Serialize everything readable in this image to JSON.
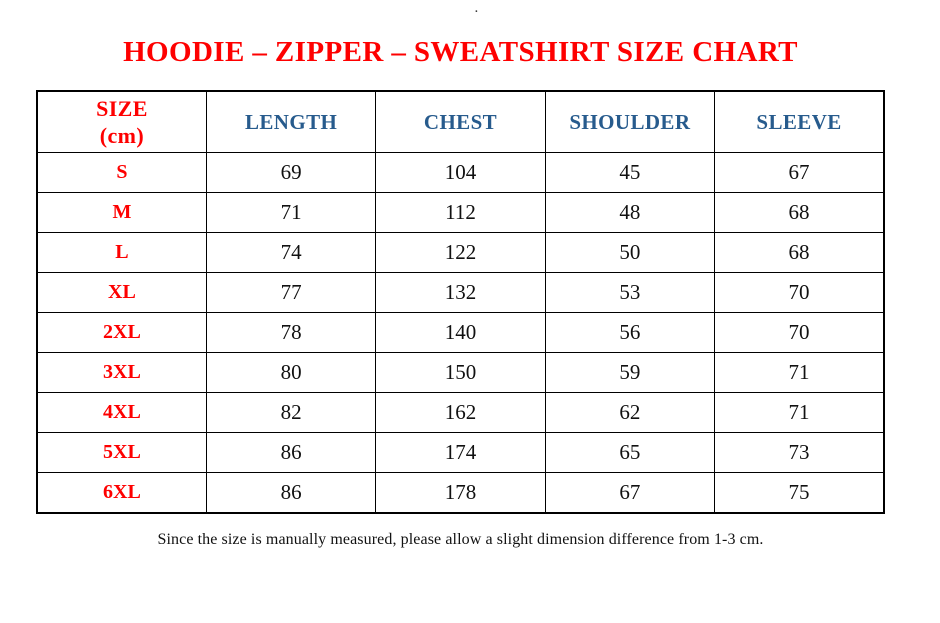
{
  "page": {
    "top_mark": ".",
    "background": "#ffffff"
  },
  "colors": {
    "title_red": "#fe0000",
    "size_label_red": "#fe0000",
    "header_blue": "#275b8d",
    "body_text": "#111111",
    "border": "#000000"
  },
  "chart_data": {
    "type": "table",
    "title": "HOODIE – ZIPPER – SWEATSHIRT SIZE CHART",
    "columns": [
      "SIZE (cm)",
      "LENGTH",
      "CHEST",
      "SHOULDER",
      "SLEEVE"
    ],
    "size_header_lines": [
      "SIZE",
      "(cm)"
    ],
    "unit": "cm",
    "rows": [
      [
        "S",
        69,
        104,
        45,
        67
      ],
      [
        "M",
        71,
        112,
        48,
        68
      ],
      [
        "L",
        74,
        122,
        50,
        68
      ],
      [
        "XL",
        77,
        132,
        53,
        70
      ],
      [
        "2XL",
        78,
        140,
        56,
        70
      ],
      [
        "3XL",
        80,
        150,
        59,
        71
      ],
      [
        "4XL",
        82,
        162,
        62,
        71
      ],
      [
        "5XL",
        86,
        174,
        65,
        73
      ],
      [
        "6XL",
        86,
        178,
        67,
        75
      ]
    ],
    "footnote": "Since the size is manually measured, please allow a slight dimension difference from 1-3 cm.",
    "legend_position": "none",
    "grid": true
  }
}
